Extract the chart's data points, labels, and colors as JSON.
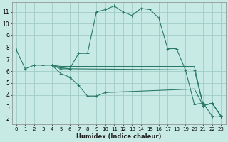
{
  "xlabel": "Humidex (Indice chaleur)",
  "bg_color": "#c8eae4",
  "line_color": "#2a7a6a",
  "grid_color": "#a0ccc4",
  "line1_x": [
    0,
    1,
    2,
    3,
    4,
    5,
    6,
    7,
    8,
    9,
    10,
    11,
    12,
    13,
    14,
    15,
    16,
    17,
    18,
    19,
    20,
    21,
    22,
    23
  ],
  "line1_y": [
    7.8,
    6.2,
    6.5,
    6.5,
    6.5,
    6.3,
    6.2,
    7.5,
    7.5,
    11.0,
    11.2,
    11.5,
    11.0,
    10.7,
    11.3,
    11.2,
    10.5,
    7.9,
    7.9,
    6.1,
    3.2,
    3.3,
    2.2,
    2.2
  ],
  "line2_x": [
    4,
    5,
    6,
    7,
    8,
    9,
    10,
    20,
    21,
    22,
    23
  ],
  "line2_y": [
    6.5,
    5.8,
    5.5,
    4.8,
    3.9,
    3.9,
    4.2,
    4.5,
    3.1,
    3.3,
    2.2
  ],
  "line3_x": [
    4,
    5,
    6,
    20,
    21,
    22,
    23
  ],
  "line3_y": [
    6.5,
    6.2,
    6.2,
    6.1,
    3.1,
    3.3,
    2.2
  ],
  "line4_x": [
    4,
    5,
    6,
    20,
    21,
    22,
    23
  ],
  "line4_y": [
    6.5,
    6.4,
    6.4,
    6.4,
    3.1,
    3.3,
    2.2
  ],
  "xlim": [
    -0.5,
    23.5
  ],
  "ylim": [
    1.5,
    11.8
  ],
  "xticks": [
    0,
    1,
    2,
    3,
    4,
    5,
    6,
    7,
    8,
    9,
    10,
    11,
    12,
    13,
    14,
    15,
    16,
    17,
    18,
    19,
    20,
    21,
    22,
    23
  ],
  "yticks": [
    2,
    3,
    4,
    5,
    6,
    7,
    8,
    9,
    10,
    11
  ]
}
